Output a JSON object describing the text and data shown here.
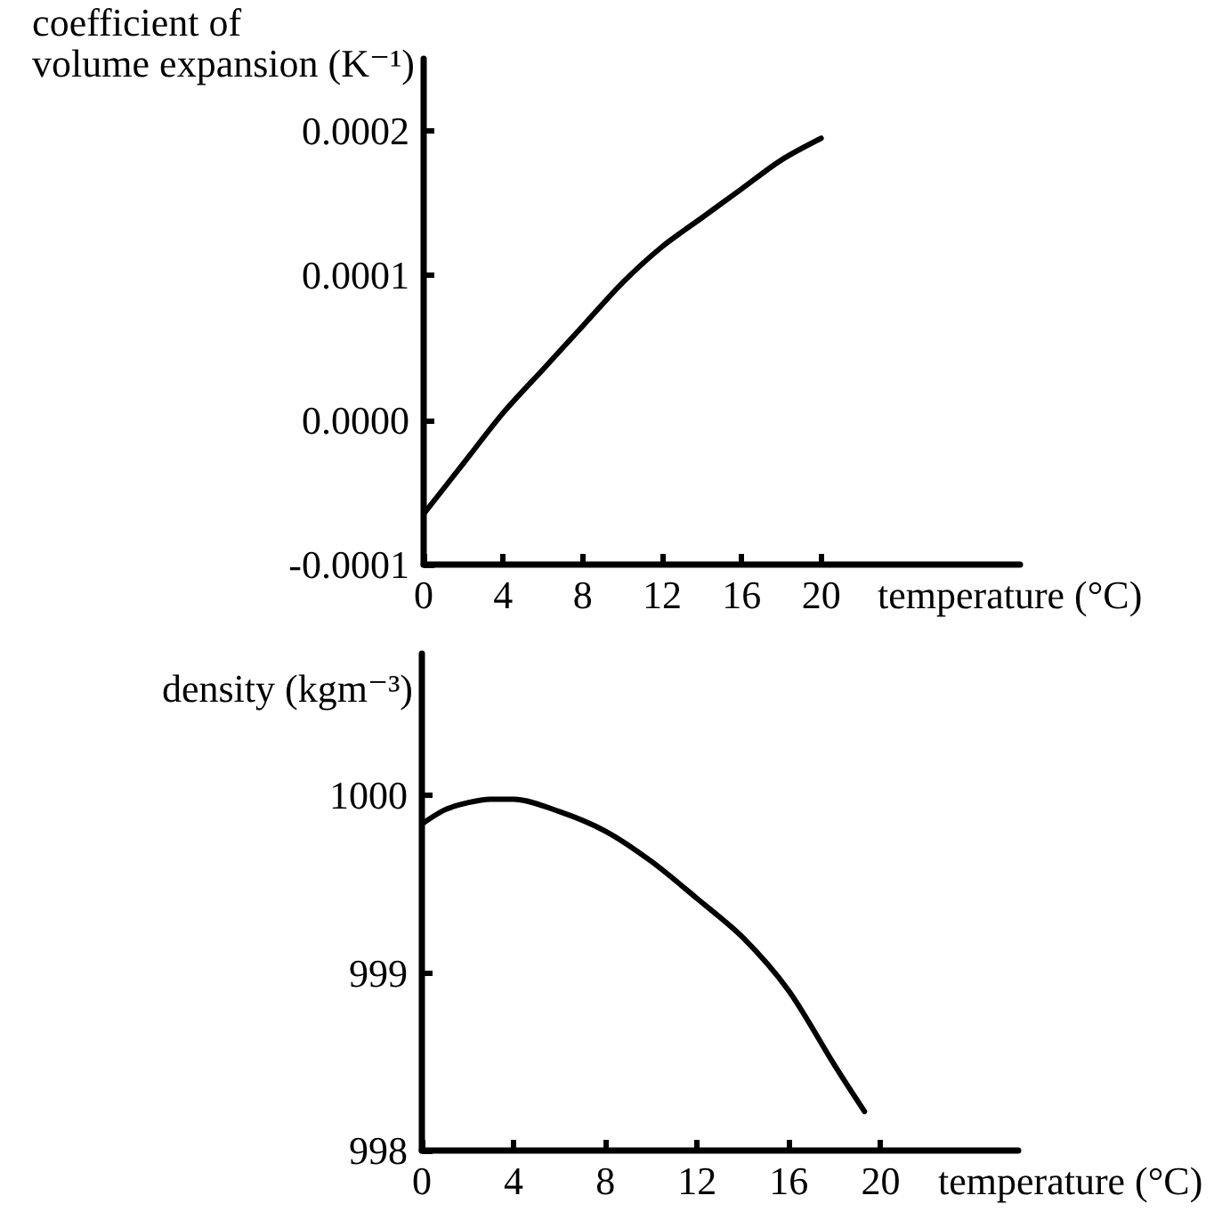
{
  "chart_data": [
    {
      "type": "line",
      "ylabel": "coefficient of\nvolume expansion (K⁻¹)",
      "xlabel": "temperature (°C)",
      "color": "#000000",
      "marker": "none",
      "line_style": "solid",
      "x": [
        0,
        2,
        4,
        6,
        8,
        10,
        12,
        14,
        16,
        18,
        20
      ],
      "values": [
        -6.5e-05,
        -3e-05,
        5e-06,
        3.5e-05,
        6.5e-05,
        9.5e-05,
        0.00012,
        0.00014,
        0.00016,
        0.00018,
        0.000195
      ],
      "xlim": [
        0,
        30
      ],
      "xticks": [
        0,
        4,
        8,
        12,
        16,
        20
      ],
      "ylim": [
        -0.0001,
        0.00025
      ],
      "yticks": [
        -0.0001,
        {
          "value": 0,
          "label": "0.0000"
        },
        0.0001,
        0.0002
      ]
    },
    {
      "type": "line",
      "ylabel": "density (kgm⁻³)",
      "xlabel": "temperature (°C)",
      "color": "#000000",
      "marker": "none",
      "line_style": "solid",
      "x": [
        0,
        1,
        2,
        3,
        4,
        6,
        8,
        10,
        12,
        14,
        16,
        18,
        19.3
      ],
      "values": [
        999.84,
        999.92,
        999.96,
        999.98,
        999.98,
        999.91,
        999.8,
        999.63,
        999.42,
        999.2,
        998.9,
        998.48,
        998.22
      ],
      "xlim": [
        0,
        26
      ],
      "xticks": [
        0,
        4,
        8,
        12,
        16,
        20
      ],
      "ylim": [
        998,
        1000.8
      ],
      "yticks": [
        998,
        999,
        1000
      ]
    }
  ]
}
